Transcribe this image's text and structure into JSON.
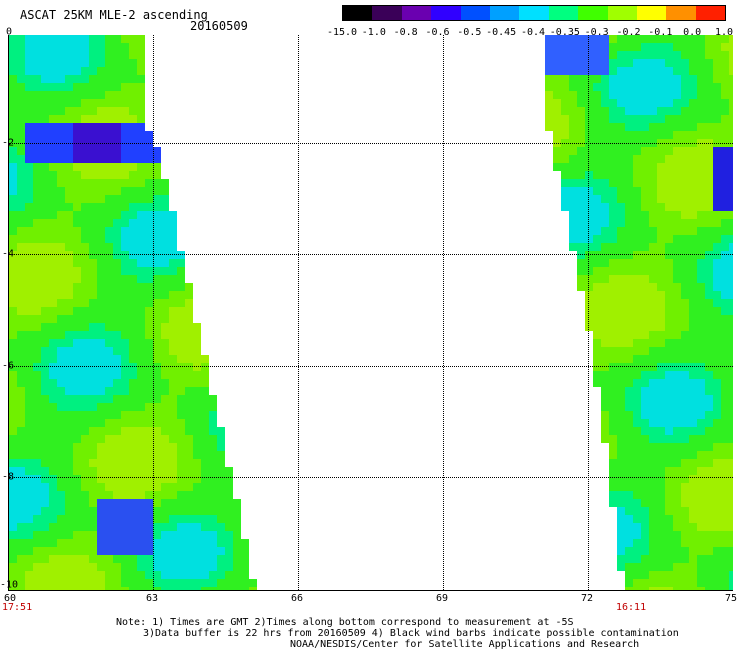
{
  "title": "ASCAT 25KM MLE-2 ascending",
  "date": "20160509",
  "colorbar": {
    "labels": [
      "-15.0",
      "-1.0",
      "-0.8",
      "-0.6",
      "-0.5",
      "-0.45",
      "-0.4",
      "-0.35",
      "-0.3",
      "-0.2",
      "-0.1",
      "0.0",
      "1.0"
    ],
    "colors": [
      "#000000",
      "#3a0058",
      "#6a00b0",
      "#3000ff",
      "#0050ff",
      "#00a0ff",
      "#00e0ff",
      "#00ff80",
      "#40ff00",
      "#a0ff00",
      "#ffff00",
      "#ff9000",
      "#ff2000"
    ]
  },
  "axes": {
    "x_ticks": [
      "60",
      "63",
      "66",
      "69",
      "72",
      "75"
    ],
    "y_ticks": [
      "0",
      "-2",
      "-4",
      "-6",
      "-8",
      "-10"
    ]
  },
  "times": {
    "left": "17:51",
    "right": "16:11"
  },
  "notes": {
    "line1": "Note: 1) Times are GMT 2)Times along bottom correspond to measurement at -5S",
    "line2": "3)Data buffer is 22 hrs from 20160509 4) Black wind barbs indicate possible contamination",
    "line3": "NOAA/NESDIS/Center for Satellite Applications and Research"
  }
}
